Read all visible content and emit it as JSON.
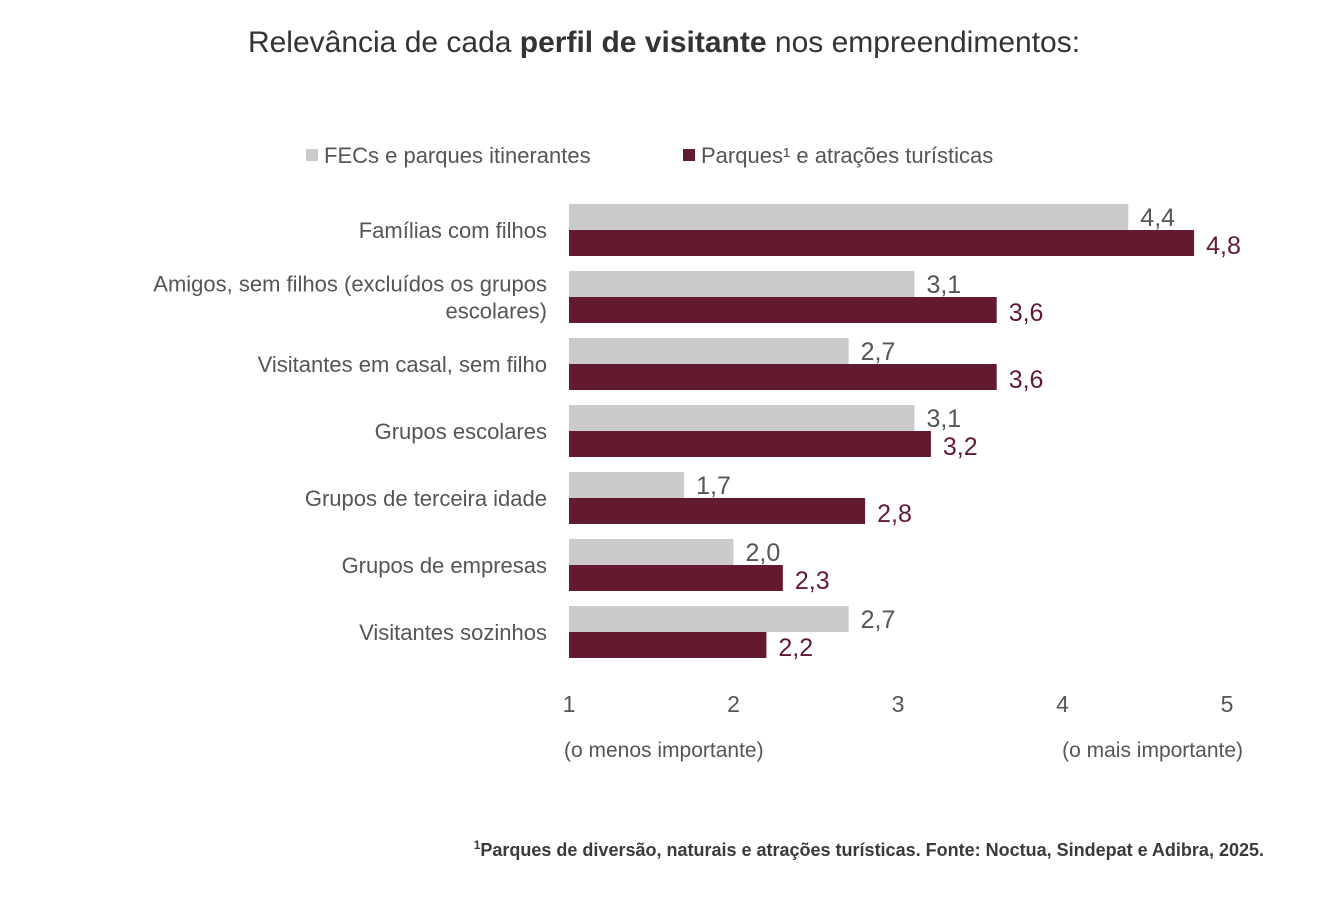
{
  "title": {
    "before": "Relevância de cada ",
    "bold": "perfil de visitante",
    "after": " nos empreendimentos:"
  },
  "colors": {
    "fec": "#cbcbcb",
    "parques": "#631a2f",
    "fec_label": "#555555",
    "parques_label": "#631a2f",
    "category_label": "#555555"
  },
  "chart_data": {
    "type": "bar",
    "orientation": "horizontal",
    "categories": [
      "Famílias com filhos",
      "Amigos, sem filhos (excluídos os grupos escolares)",
      "Visitantes em casal, sem filho",
      "Grupos escolares",
      "Grupos de terceira idade",
      "Grupos de empresas",
      "Visitantes sozinhos"
    ],
    "category_label_lines": [
      [
        "Famílias com filhos"
      ],
      [
        "Amigos, sem filhos (excluídos os grupos",
        "escolares)"
      ],
      [
        "Visitantes em casal, sem filho"
      ],
      [
        "Grupos escolares"
      ],
      [
        "Grupos de terceira idade"
      ],
      [
        "Grupos de empresas"
      ],
      [
        "Visitantes sozinhos"
      ]
    ],
    "series": [
      {
        "name": "FECs e parques itinerantes",
        "values": [
          4.4,
          3.1,
          2.7,
          3.1,
          1.7,
          2.0,
          2.7
        ],
        "labels": [
          "4,4",
          "3,1",
          "2,7",
          "3,1",
          "1,7",
          "2,0",
          "2,7"
        ]
      },
      {
        "name": "Parques¹ e atrações turísticas",
        "values": [
          4.8,
          3.6,
          3.6,
          3.2,
          2.8,
          2.3,
          2.2
        ],
        "labels": [
          "4,8",
          "3,6",
          "3,6",
          "3,2",
          "2,8",
          "2,3",
          "2,2"
        ]
      }
    ],
    "xlim": [
      1,
      5
    ],
    "xticks": [
      1,
      2,
      3,
      4,
      5
    ],
    "xtick_labels": [
      "1",
      "2",
      "3",
      "4",
      "5"
    ],
    "x_annotations": {
      "min": "(o menos importante)",
      "max": "(o mais importante)"
    },
    "legend_position": "top",
    "grid": false
  },
  "footnote": {
    "marker": "1",
    "text": "Parques de diversão, naturais e atrações turísticas. Fonte: Noctua, Sindepat e Adibra, 2025."
  }
}
